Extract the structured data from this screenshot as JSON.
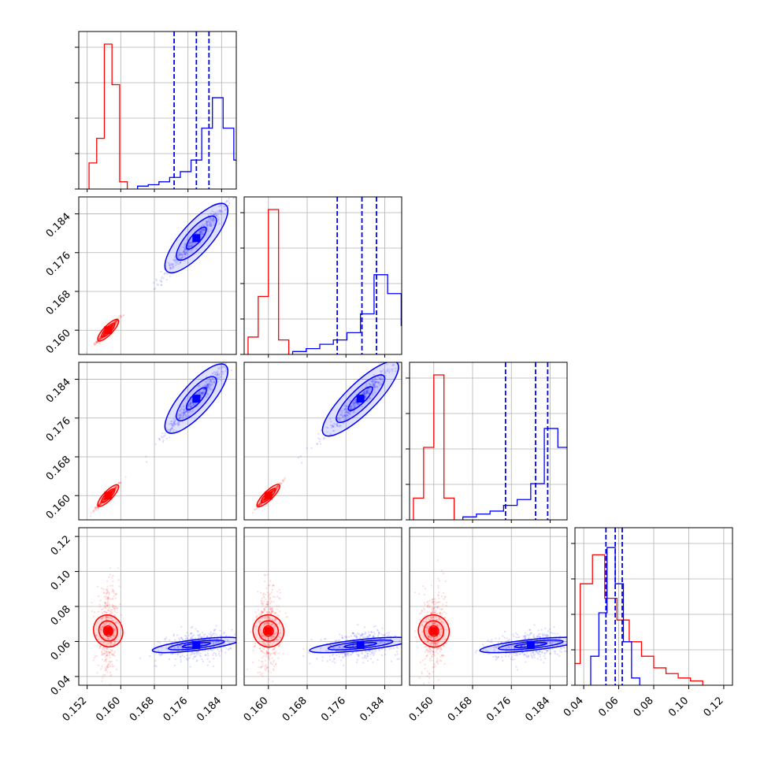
{
  "chart_data": {
    "type": "corner",
    "title": "",
    "grid": true,
    "colors": {
      "red": "#ff0000",
      "blue": "#0000ff"
    },
    "parameters": [
      {
        "range": [
          0.15,
          0.1875
        ],
        "ticks": [
          "0.152",
          "0.160",
          "0.168",
          "0.176",
          "0.184"
        ],
        "tick_values": [
          0.152,
          0.16,
          0.168,
          0.176,
          0.184
        ]
      },
      {
        "range": [
          0.155,
          0.1875
        ],
        "ticks": [
          "0.160",
          "0.168",
          "0.176",
          "0.184"
        ],
        "tick_values": [
          0.16,
          0.168,
          0.176,
          0.184
        ]
      },
      {
        "range": [
          0.155,
          0.1875
        ],
        "ticks": [
          "0.160",
          "0.168",
          "0.176",
          "0.184"
        ],
        "tick_values": [
          0.16,
          0.168,
          0.176,
          0.184
        ]
      },
      {
        "range": [
          0.035,
          0.125
        ],
        "ticks": [
          "0.04",
          "0.06",
          "0.08",
          "0.10",
          "0.12"
        ],
        "tick_values": [
          0.04,
          0.06,
          0.08,
          0.1,
          0.12
        ]
      }
    ],
    "series": [
      {
        "color": "red",
        "means": [
          0.157,
          0.16,
          0.16,
          0.066
        ],
        "sds": [
          0.0013,
          0.0012,
          0.0012,
          0.012
        ],
        "diag_heights": [
          [
            0.18,
            0.35,
            1.0,
            0.72,
            0.05
          ],
          [
            0.12,
            0.4,
            1.0,
            0.1
          ],
          [
            0.15,
            0.5,
            1.0,
            0.15
          ],
          [
            0.05,
            0.15,
            0.7,
            0.9,
            0.6,
            0.45,
            0.3,
            0.2,
            0.12,
            0.08,
            0.05,
            0.03
          ]
        ],
        "quantile_lines": [
          null,
          null,
          null,
          null
        ]
      },
      {
        "color": "blue",
        "means": [
          0.178,
          0.179,
          0.18,
          0.058
        ],
        "sds": [
          0.004,
          0.004,
          0.004,
          0.004
        ],
        "diag_heights": [
          [
            0.02,
            0.03,
            0.05,
            0.08,
            0.12,
            0.2,
            0.42,
            0.63,
            0.42,
            0.2,
            0.05
          ],
          [
            0.02,
            0.04,
            0.07,
            0.1,
            0.15,
            0.28,
            0.55,
            0.42,
            0.2,
            0.05
          ],
          [
            0.02,
            0.04,
            0.06,
            0.1,
            0.14,
            0.25,
            0.63,
            0.5,
            0.2,
            0.05
          ],
          [
            0.2,
            0.5,
            0.95,
            0.7,
            0.3,
            0.05
          ]
        ],
        "quantile_lines": [
          [
            0.1727,
            0.178,
            0.181
          ],
          [
            0.1742,
            0.1793,
            0.1823
          ],
          [
            0.1748,
            0.181,
            0.1835
          ],
          [
            0.0527,
            0.058,
            0.062
          ]
        ]
      }
    ]
  }
}
